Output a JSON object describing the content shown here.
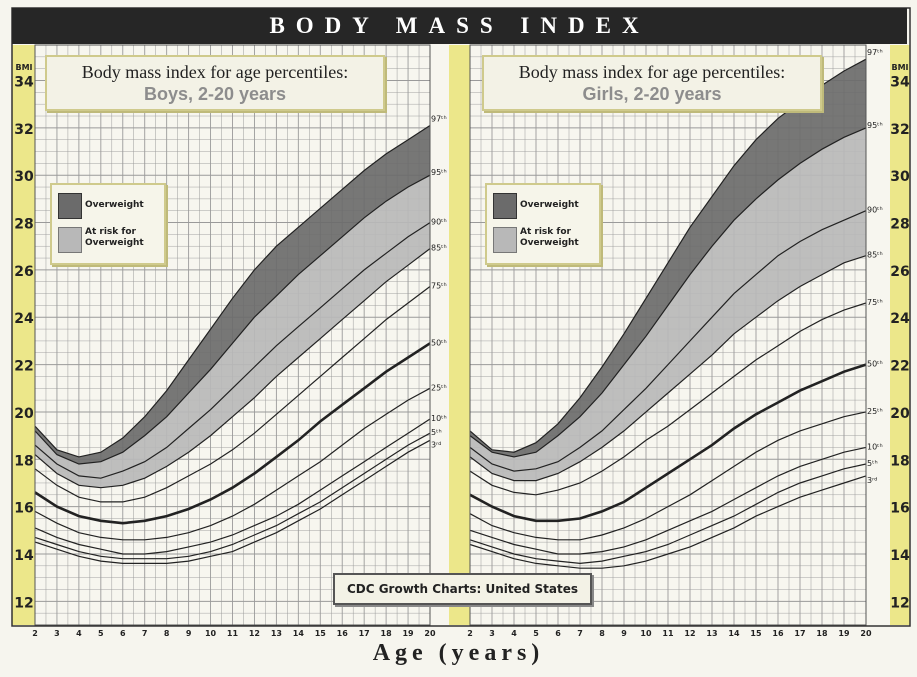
{
  "banner": "BODY MASS INDEX",
  "x_axis_title": "Age (years)",
  "y_axis_label": "BMI",
  "source": "CDC Growth Charts: United States",
  "colors": {
    "overweight": "#6b6b6b",
    "at_risk": "#b8b8b8",
    "axis_strip": "#ece78a",
    "grid": "#9a9a9a"
  },
  "legend": {
    "overweight": "Overweight",
    "at_risk_l1": "At risk for",
    "at_risk_l2": "Overweight"
  },
  "chart_data": [
    {
      "type": "line",
      "title": "Body mass index for age percentiles:",
      "subtitle": "Boys, 2-20 years",
      "xlabel": "Age (years)",
      "ylabel": "BMI",
      "xlim": [
        2,
        20
      ],
      "ylim": [
        11,
        35.5
      ],
      "x_ticks": [
        2,
        3,
        4,
        5,
        6,
        7,
        8,
        9,
        10,
        11,
        12,
        13,
        14,
        15,
        16,
        17,
        18,
        19,
        20
      ],
      "y_ticks": [
        12,
        14,
        16,
        18,
        20,
        22,
        24,
        26,
        28,
        30,
        32,
        34
      ],
      "grid": true,
      "x": [
        2,
        3,
        4,
        5,
        6,
        7,
        8,
        9,
        10,
        11,
        12,
        13,
        14,
        15,
        16,
        17,
        18,
        19,
        20
      ],
      "series": [
        {
          "name": "97th",
          "values": [
            19.4,
            18.4,
            18.1,
            18.3,
            18.9,
            19.8,
            20.9,
            22.2,
            23.5,
            24.8,
            26.0,
            27.0,
            27.8,
            28.6,
            29.4,
            30.2,
            30.9,
            31.5,
            32.1
          ]
        },
        {
          "name": "95th",
          "values": [
            19.2,
            18.2,
            17.8,
            17.9,
            18.3,
            19.0,
            19.8,
            20.8,
            21.8,
            22.9,
            24.0,
            24.9,
            25.8,
            26.6,
            27.4,
            28.2,
            28.9,
            29.5,
            30.0
          ]
        },
        {
          "name": "90th",
          "values": [
            18.6,
            17.8,
            17.3,
            17.2,
            17.5,
            17.9,
            18.5,
            19.3,
            20.1,
            21.0,
            21.9,
            22.8,
            23.6,
            24.4,
            25.2,
            26.0,
            26.7,
            27.4,
            28.0
          ]
        },
        {
          "name": "85th",
          "values": [
            18.2,
            17.4,
            16.9,
            16.8,
            16.9,
            17.2,
            17.7,
            18.3,
            19.0,
            19.8,
            20.6,
            21.5,
            22.3,
            23.1,
            23.9,
            24.7,
            25.5,
            26.2,
            26.9
          ]
        },
        {
          "name": "75th",
          "values": [
            17.6,
            16.9,
            16.4,
            16.2,
            16.2,
            16.4,
            16.8,
            17.3,
            17.8,
            18.4,
            19.1,
            19.9,
            20.7,
            21.5,
            22.3,
            23.1,
            23.9,
            24.6,
            25.3
          ]
        },
        {
          "name": "50th",
          "values": [
            16.6,
            16.0,
            15.6,
            15.4,
            15.3,
            15.4,
            15.6,
            15.9,
            16.3,
            16.8,
            17.4,
            18.1,
            18.8,
            19.6,
            20.3,
            21.0,
            21.7,
            22.3,
            22.9
          ]
        },
        {
          "name": "25th",
          "values": [
            15.8,
            15.3,
            14.9,
            14.7,
            14.6,
            14.6,
            14.7,
            14.9,
            15.2,
            15.6,
            16.1,
            16.7,
            17.3,
            17.9,
            18.6,
            19.3,
            19.9,
            20.5,
            21.0
          ]
        },
        {
          "name": "10th",
          "values": [
            15.1,
            14.7,
            14.4,
            14.2,
            14.0,
            14.0,
            14.1,
            14.3,
            14.5,
            14.8,
            15.2,
            15.6,
            16.1,
            16.7,
            17.3,
            17.9,
            18.5,
            19.1,
            19.7
          ]
        },
        {
          "name": "5th",
          "values": [
            14.7,
            14.4,
            14.1,
            13.9,
            13.8,
            13.8,
            13.8,
            13.9,
            14.1,
            14.4,
            14.8,
            15.2,
            15.7,
            16.2,
            16.8,
            17.4,
            18.0,
            18.6,
            19.1
          ]
        },
        {
          "name": "3rd",
          "values": [
            14.5,
            14.2,
            13.9,
            13.7,
            13.6,
            13.6,
            13.6,
            13.7,
            13.9,
            14.1,
            14.5,
            14.9,
            15.4,
            15.9,
            16.5,
            17.1,
            17.7,
            18.3,
            18.8
          ]
        }
      ],
      "bands": [
        {
          "label": "Overweight",
          "from_series": "95th",
          "to_series": "97th"
        },
        {
          "label": "At risk for Overweight",
          "from_series": "85th",
          "to_series": "95th"
        }
      ]
    },
    {
      "type": "line",
      "title": "Body mass index for age percentiles:",
      "subtitle": "Girls, 2-20 years",
      "xlabel": "Age (years)",
      "ylabel": "BMI",
      "xlim": [
        2,
        20
      ],
      "ylim": [
        11,
        35.5
      ],
      "x_ticks": [
        2,
        3,
        4,
        5,
        6,
        7,
        8,
        9,
        10,
        11,
        12,
        13,
        14,
        15,
        16,
        17,
        18,
        19,
        20
      ],
      "y_ticks": [
        12,
        14,
        16,
        18,
        20,
        22,
        24,
        26,
        28,
        30,
        32,
        34
      ],
      "grid": true,
      "x": [
        2,
        3,
        4,
        5,
        6,
        7,
        8,
        9,
        10,
        11,
        12,
        13,
        14,
        15,
        16,
        17,
        18,
        19,
        20
      ],
      "series": [
        {
          "name": "97th",
          "values": [
            19.2,
            18.4,
            18.3,
            18.7,
            19.5,
            20.6,
            21.9,
            23.3,
            24.8,
            26.3,
            27.8,
            29.1,
            30.4,
            31.5,
            32.4,
            33.1,
            33.8,
            34.4,
            34.9
          ]
        },
        {
          "name": "95th",
          "values": [
            19.0,
            18.3,
            18.1,
            18.3,
            19.0,
            19.8,
            20.8,
            22.0,
            23.2,
            24.5,
            25.8,
            27.0,
            28.1,
            29.0,
            29.8,
            30.5,
            31.1,
            31.6,
            32.0
          ]
        },
        {
          "name": "90th",
          "values": [
            18.5,
            17.8,
            17.5,
            17.6,
            17.9,
            18.5,
            19.2,
            20.1,
            21.0,
            22.0,
            23.0,
            24.0,
            25.0,
            25.8,
            26.6,
            27.2,
            27.7,
            28.1,
            28.5
          ]
        },
        {
          "name": "85th",
          "values": [
            18.1,
            17.4,
            17.1,
            17.1,
            17.4,
            17.9,
            18.5,
            19.2,
            20.0,
            20.8,
            21.6,
            22.4,
            23.3,
            24.0,
            24.7,
            25.3,
            25.8,
            26.3,
            26.6
          ]
        },
        {
          "name": "75th",
          "values": [
            17.5,
            16.9,
            16.6,
            16.5,
            16.7,
            17.0,
            17.5,
            18.1,
            18.8,
            19.4,
            20.1,
            20.8,
            21.5,
            22.2,
            22.8,
            23.4,
            23.9,
            24.3,
            24.6
          ]
        },
        {
          "name": "50th",
          "values": [
            16.5,
            16.0,
            15.6,
            15.4,
            15.4,
            15.5,
            15.8,
            16.2,
            16.8,
            17.4,
            18.0,
            18.6,
            19.3,
            19.9,
            20.4,
            20.9,
            21.3,
            21.7,
            22.0
          ]
        },
        {
          "name": "25th",
          "values": [
            15.7,
            15.2,
            14.9,
            14.7,
            14.6,
            14.6,
            14.8,
            15.1,
            15.5,
            16.0,
            16.5,
            17.1,
            17.7,
            18.3,
            18.8,
            19.2,
            19.5,
            19.8,
            20.0
          ]
        },
        {
          "name": "10th",
          "values": [
            15.0,
            14.7,
            14.4,
            14.2,
            14.0,
            14.0,
            14.1,
            14.3,
            14.6,
            15.0,
            15.4,
            15.8,
            16.3,
            16.8,
            17.3,
            17.7,
            18.0,
            18.3,
            18.5
          ]
        },
        {
          "name": "5th",
          "values": [
            14.6,
            14.3,
            14.0,
            13.8,
            13.7,
            13.6,
            13.7,
            13.9,
            14.1,
            14.4,
            14.8,
            15.2,
            15.6,
            16.1,
            16.6,
            17.0,
            17.3,
            17.6,
            17.8
          ]
        },
        {
          "name": "3rd",
          "values": [
            14.4,
            14.1,
            13.8,
            13.6,
            13.5,
            13.4,
            13.4,
            13.5,
            13.7,
            14.0,
            14.3,
            14.7,
            15.1,
            15.6,
            16.0,
            16.4,
            16.7,
            17.0,
            17.3
          ]
        }
      ],
      "bands": [
        {
          "label": "Overweight",
          "from_series": "95th",
          "to_series": "97th"
        },
        {
          "label": "At risk for Overweight",
          "from_series": "85th",
          "to_series": "95th"
        }
      ]
    }
  ]
}
